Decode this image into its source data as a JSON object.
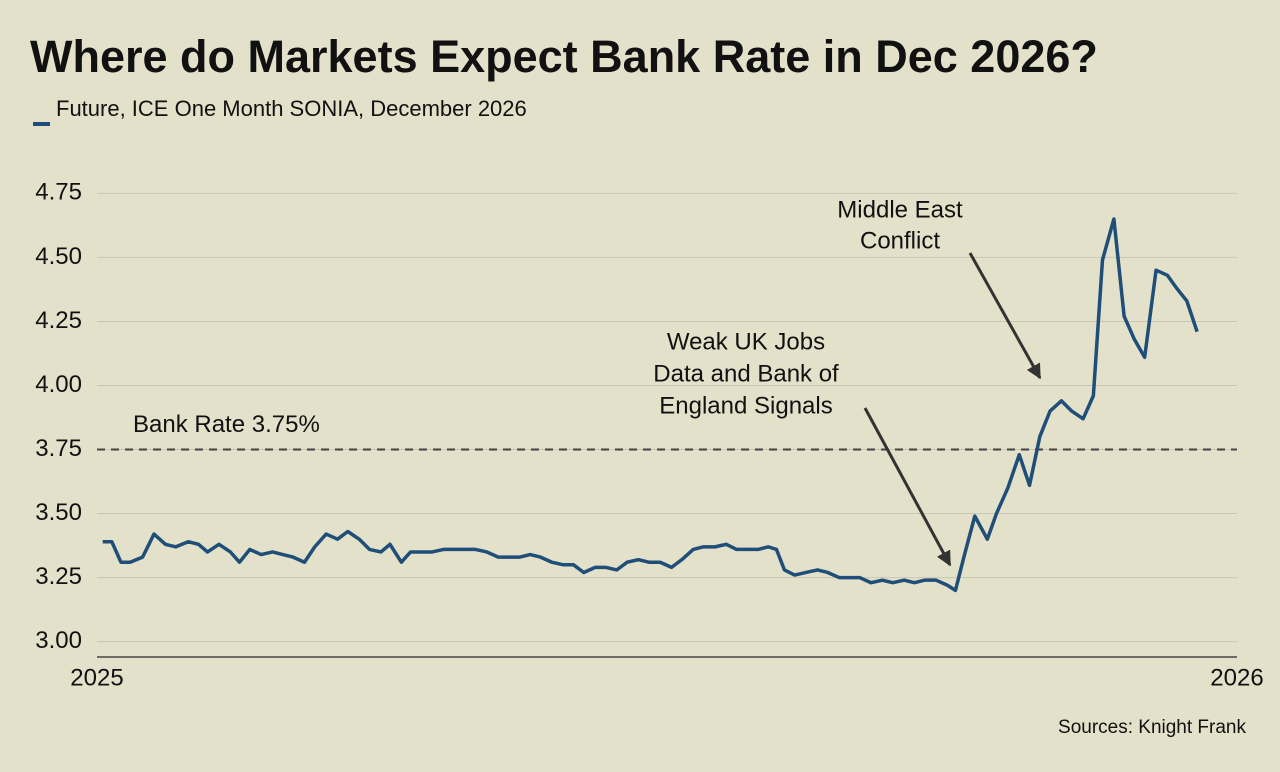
{
  "chart_data": {
    "type": "line",
    "title": "Where do Markets Expect Bank Rate in Dec 2026?",
    "source": "Sources: Knight Frank",
    "xlim": [
      2025,
      2026
    ],
    "xticks": [
      2025,
      2026
    ],
    "ylim": [
      2.94,
      4.81
    ],
    "yticks": [
      {
        "value": 3,
        "label": "3.00"
      },
      {
        "value": 3.25,
        "label": "3.25"
      },
      {
        "value": 3.5,
        "label": "3.50"
      },
      {
        "value": 3.75,
        "label": "3.75"
      },
      {
        "value": 4,
        "label": "4.00"
      },
      {
        "value": 4.25,
        "label": "4.25"
      },
      {
        "value": 4.5,
        "label": "4.50"
      },
      {
        "value": 4.75,
        "label": "4.75"
      }
    ],
    "grid": true,
    "reference_line": {
      "value": 3.75,
      "label": "Bank Rate 3.75%"
    },
    "annotations": [
      {
        "lines": [
          "Weak UK Jobs",
          "Data and Bank of",
          "England Signals"
        ]
      },
      {
        "lines": [
          "Middle East",
          "Conflict"
        ]
      }
    ],
    "x": [
      2025.005,
      2025.013,
      2025.021,
      2025.029,
      2025.04,
      2025.05,
      2025.06,
      2025.069,
      2025.08,
      2025.089,
      2025.097,
      2025.107,
      2025.117,
      2025.125,
      2025.134,
      2025.144,
      2025.154,
      2025.163,
      2025.172,
      2025.182,
      2025.191,
      2025.201,
      2025.211,
      2025.22,
      2025.23,
      2025.239,
      2025.249,
      2025.257,
      2025.267,
      2025.275,
      2025.284,
      2025.294,
      2025.304,
      2025.313,
      2025.323,
      2025.332,
      2025.342,
      2025.352,
      2025.361,
      2025.371,
      2025.38,
      2025.389,
      2025.399,
      2025.409,
      2025.418,
      2025.427,
      2025.437,
      2025.446,
      2025.456,
      2025.465,
      2025.475,
      2025.484,
      2025.494,
      2025.504,
      2025.513,
      2025.523,
      2025.532,
      2025.542,
      2025.552,
      2025.561,
      2025.57,
      2025.58,
      2025.589,
      2025.596,
      2025.603,
      2025.612,
      2025.622,
      2025.632,
      2025.641,
      2025.651,
      2025.661,
      2025.669,
      2025.679,
      2025.689,
      2025.698,
      2025.708,
      2025.717,
      2025.726,
      2025.736,
      2025.746,
      2025.753,
      2025.761,
      2025.77,
      2025.781,
      2025.789,
      2025.799,
      2025.809,
      2025.818,
      2025.827,
      2025.836,
      2025.846,
      2025.855,
      2025.865,
      2025.874,
      2025.882,
      2025.892,
      2025.901,
      2025.91,
      2025.919,
      2025.929,
      2025.939,
      2025.947,
      2025.956,
      2025.965
    ],
    "series": [
      {
        "name": "Future, ICE One Month SONIA, December 2026",
        "color": "#1f4e79",
        "values": [
          3.39,
          3.39,
          3.31,
          3.31,
          3.33,
          3.42,
          3.38,
          3.37,
          3.39,
          3.38,
          3.35,
          3.38,
          3.35,
          3.31,
          3.36,
          3.34,
          3.35,
          3.34,
          3.33,
          3.31,
          3.37,
          3.42,
          3.4,
          3.43,
          3.4,
          3.36,
          3.35,
          3.38,
          3.31,
          3.35,
          3.35,
          3.35,
          3.36,
          3.36,
          3.36,
          3.36,
          3.35,
          3.33,
          3.33,
          3.33,
          3.34,
          3.33,
          3.31,
          3.3,
          3.3,
          3.27,
          3.29,
          3.29,
          3.28,
          3.31,
          3.32,
          3.31,
          3.31,
          3.29,
          3.32,
          3.36,
          3.37,
          3.37,
          3.38,
          3.36,
          3.36,
          3.36,
          3.37,
          3.36,
          3.28,
          3.26,
          3.27,
          3.28,
          3.27,
          3.25,
          3.25,
          3.25,
          3.23,
          3.24,
          3.23,
          3.24,
          3.23,
          3.24,
          3.24,
          3.22,
          3.2,
          3.34,
          3.49,
          3.4,
          3.5,
          3.6,
          3.73,
          3.61,
          3.8,
          3.9,
          3.94,
          3.9,
          3.87,
          3.96,
          4.49,
          4.65,
          4.27,
          4.18,
          4.11,
          4.45,
          4.43,
          4.38,
          4.33,
          4.21
        ]
      }
    ]
  }
}
